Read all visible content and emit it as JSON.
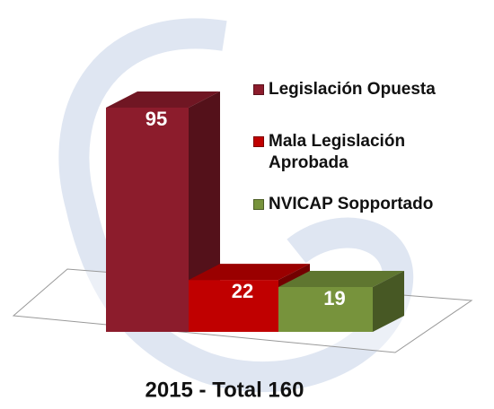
{
  "chart_data": {
    "type": "bar",
    "caption": "2015 - Total 160",
    "categories": [
      "Legislación Opuesta",
      "Mala Legislación Aprobada",
      "NVICAP Sopportado"
    ],
    "values": [
      95,
      22,
      19
    ],
    "colors": [
      "#8c1c2c",
      "#c00000",
      "#77933c"
    ]
  }
}
